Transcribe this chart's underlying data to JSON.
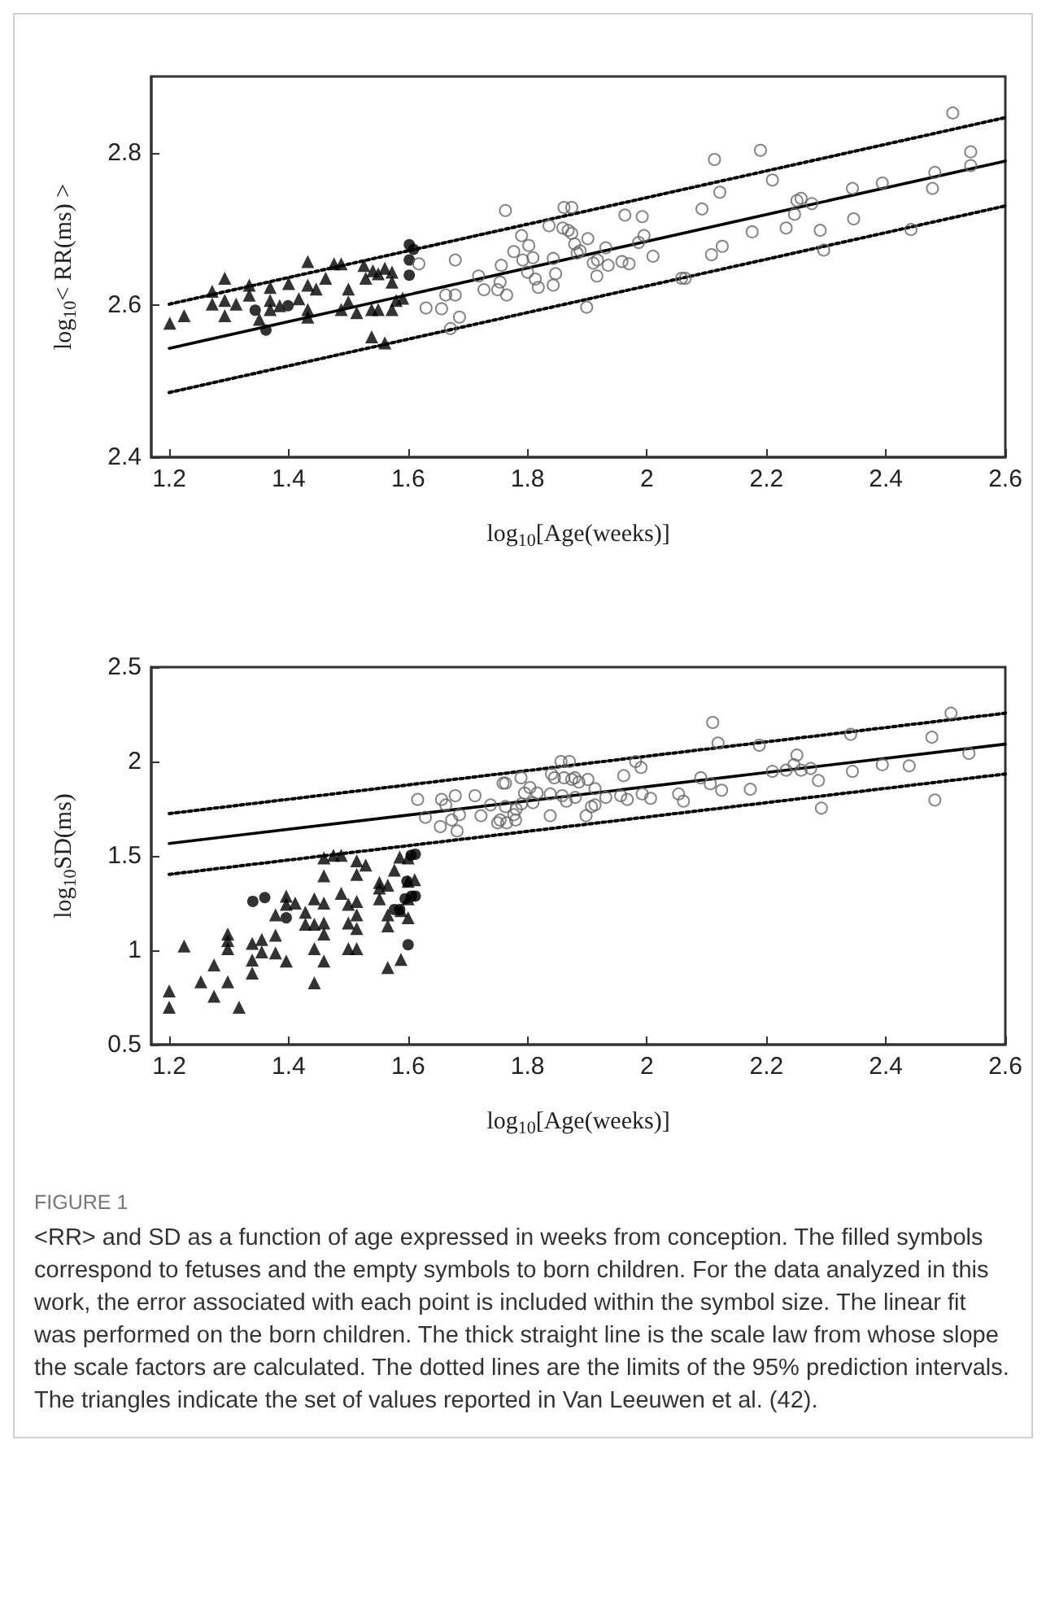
{
  "chart_data": [
    {
      "type": "scatter",
      "xlabel": "log$_{10}$[Age(weeks)]",
      "ylabel": "log$_{10}$< RR(ms) >",
      "xlim": [
        1.17,
        2.6
      ],
      "ylim": [
        2.4,
        2.9
      ],
      "xticks": [
        1.2,
        1.4,
        1.6,
        1.8,
        2,
        2.2,
        2.4,
        2.6
      ],
      "yticks": [
        2.4,
        2.6,
        2.8
      ],
      "series": [
        {
          "type": "scatter",
          "marker": "triangle",
          "color": "#000000",
          "x": [
            1.201,
            1.225,
            1.272,
            1.272,
            1.293,
            1.293,
            1.293,
            1.312,
            1.334,
            1.334,
            1.351,
            1.369,
            1.369,
            1.369,
            1.385,
            1.4,
            1.417,
            1.432,
            1.432,
            1.432,
            1.432,
            1.446,
            1.462,
            1.476,
            1.488,
            1.488,
            1.5,
            1.5,
            1.514,
            1.526,
            1.529,
            1.541,
            1.539,
            1.539,
            1.55,
            1.55,
            1.561,
            1.561,
            1.573,
            1.573,
            1.573,
            1.58,
            1.591
          ],
          "values": [
            2.576,
            2.586,
            2.618,
            2.601,
            2.635,
            2.606,
            2.586,
            2.601,
            2.626,
            2.613,
            2.581,
            2.623,
            2.606,
            2.594,
            2.599,
            2.628,
            2.608,
            2.657,
            2.626,
            2.594,
            2.584,
            2.621,
            2.635,
            2.654,
            2.654,
            2.594,
            2.621,
            2.604,
            2.59,
            2.652,
            2.635,
            2.645,
            2.594,
            2.558,
            2.641,
            2.594,
            2.648,
            2.55,
            2.643,
            2.63,
            2.594,
            2.606,
            2.609
          ]
        },
        {
          "type": "scatter",
          "marker": "circle",
          "color": "#000000",
          "x": [
            1.344,
            1.362,
            1.399,
            1.602,
            1.602,
            1.602,
            1.609
          ],
          "values": [
            2.593,
            2.567,
            2.599,
            2.679,
            2.659,
            2.639,
            2.673
          ]
        },
        {
          "type": "scatter",
          "marker": "circle",
          "color": "#666666",
          "x": [
            1.618,
            1.63,
            1.656,
            1.663,
            1.671,
            1.679,
            1.679,
            1.686,
            1.718,
            1.727,
            1.75,
            1.754,
            1.756,
            1.763,
            1.765,
            1.777,
            1.79,
            1.792,
            1.8,
            1.802,
            1.809,
            1.813,
            1.818,
            1.836,
            1.843,
            1.843,
            1.847,
            1.859,
            1.861,
            1.868,
            1.874,
            1.874,
            1.879,
            1.883,
            1.888,
            1.901,
            1.899,
            1.91,
            1.916,
            1.917,
            1.931,
            1.935,
            1.958,
            1.963,
            1.97,
            1.986,
            1.992,
            1.995,
            2.01,
            2.058,
            2.064,
            2.092,
            2.108,
            2.113,
            2.122,
            2.126,
            2.176,
            2.19,
            2.21,
            2.233,
            2.247,
            2.251,
            2.258,
            2.276,
            2.29,
            2.296,
            2.344,
            2.346,
            2.394,
            2.442,
            2.478,
            2.482,
            2.512,
            2.542,
            2.542
          ],
          "values": [
            2.654,
            2.596,
            2.595,
            2.613,
            2.569,
            2.659,
            2.613,
            2.584,
            2.638,
            2.62,
            2.62,
            2.63,
            2.652,
            2.724,
            2.613,
            2.67,
            2.691,
            2.659,
            2.643,
            2.678,
            2.662,
            2.634,
            2.623,
            2.704,
            2.661,
            2.626,
            2.641,
            2.701,
            2.728,
            2.698,
            2.728,
            2.694,
            2.68,
            2.668,
            2.671,
            2.687,
            2.597,
            2.655,
            2.638,
            2.659,
            2.675,
            2.652,
            2.657,
            2.718,
            2.654,
            2.682,
            2.716,
            2.691,
            2.664,
            2.635,
            2.635,
            2.726,
            2.666,
            2.791,
            2.748,
            2.677,
            2.696,
            2.803,
            2.764,
            2.701,
            2.719,
            2.737,
            2.74,
            2.733,
            2.698,
            2.672,
            2.753,
            2.713,
            2.76,
            2.699,
            2.753,
            2.774,
            2.852,
            2.801,
            2.783
          ]
        },
        {
          "type": "line",
          "marker": "none",
          "line_style": "solid",
          "color": "#000000",
          "x": [
            1.2,
            2.6
          ],
          "values": [
            2.543,
            2.789
          ]
        },
        {
          "type": "line",
          "marker": "none",
          "line_style": "dotted",
          "color": "#000000",
          "x": [
            1.2,
            2.6
          ],
          "values": [
            2.601,
            2.846
          ]
        },
        {
          "type": "line",
          "marker": "none",
          "line_style": "dotted",
          "color": "#000000",
          "x": [
            1.2,
            2.6
          ],
          "values": [
            2.485,
            2.73
          ]
        }
      ]
    },
    {
      "type": "scatter",
      "xlabel": "log$_{10}$[Age(weeks)]",
      "ylabel": "log$_{10}$SD(ms)",
      "xlim": [
        1.17,
        2.6
      ],
      "ylim": [
        0.5,
        2.5
      ],
      "xticks": [
        1.2,
        1.4,
        1.6,
        1.8,
        2,
        2.2,
        2.4,
        2.6
      ],
      "yticks": [
        0.5,
        1,
        1.5,
        2,
        2.5
      ],
      "annotations": [
        "FIGURE 1",
        "<RR> and SD as a function of age expressed in weeks from conception. The filled symbols correspond to fetuses and the empty symbols to born children. For the data analyzed in this work, the error associated with each point is included within the symbol size. The linear fit was performed on the born children. The thick straight line is the scale law from whose slope the scale factors are calculated. The dotted lines are the limits of the 95% prediction intervals. The triangles indicate the set of values reported in Van Leeuwen et al. (42)."
      ],
      "series": [
        {
          "type": "scatter",
          "marker": "triangle",
          "color": "#000000",
          "x": [
            1.2,
            1.2,
            1.225,
            1.253,
            1.275,
            1.275,
            1.298,
            1.298,
            1.298,
            1.298,
            1.317,
            1.339,
            1.339,
            1.339,
            1.355,
            1.355,
            1.378,
            1.378,
            1.378,
            1.396,
            1.396,
            1.396,
            1.411,
            1.428,
            1.428,
            1.443,
            1.443,
            1.443,
            1.443,
            1.459,
            1.459,
            1.459,
            1.459,
            1.459,
            1.459,
            1.475,
            1.488,
            1.488,
            1.5,
            1.5,
            1.5,
            1.514,
            1.514,
            1.514,
            1.514,
            1.514,
            1.514,
            1.529,
            1.552,
            1.552,
            1.552,
            1.566,
            1.566,
            1.566,
            1.566,
            1.577,
            1.588,
            1.588,
            1.586,
            1.6,
            1.6,
            1.6,
            1.6,
            1.611
          ],
          "values": [
            0.784,
            0.698,
            1.023,
            0.833,
            0.922,
            0.756,
            1.086,
            1.052,
            1.009,
            0.833,
            0.698,
            1.037,
            0.948,
            0.879,
            1.057,
            0.991,
            1.08,
            0.986,
            1.187,
            0.943,
            1.244,
            1.287,
            1.25,
            1.201,
            1.138,
            1.273,
            1.138,
            1.009,
            0.828,
            0.943,
            1.086,
            1.144,
            1.25,
            1.394,
            1.489,
            1.503,
            1.503,
            1.302,
            1.244,
            1.144,
            1.009,
            1.474,
            1.402,
            1.259,
            1.187,
            1.115,
            1.009,
            1.451,
            1.359,
            1.33,
            1.273,
            1.345,
            1.187,
            1.129,
            0.908,
            1.425,
            1.21,
            0.951,
            1.494,
            1.489,
            1.365,
            1.273,
            1.172,
            1.374
          ]
        },
        {
          "type": "scatter",
          "marker": "circle",
          "color": "#000000",
          "x": [
            1.34,
            1.36,
            1.396,
            1.577,
            1.586,
            1.595,
            1.598,
            1.6,
            1.605,
            1.612,
            1.606,
            1.612
          ],
          "values": [
            1.259,
            1.279,
            1.172,
            1.216,
            1.216,
            1.273,
            1.365,
            1.029,
            1.503,
            1.509,
            1.287,
            1.287
          ]
        },
        {
          "type": "scatter",
          "marker": "circle",
          "color": "#666666",
          "x": [
            1.616,
            1.629,
            1.654,
            1.656,
            1.663,
            1.673,
            1.679,
            1.682,
            1.686,
            1.712,
            1.722,
            1.738,
            1.75,
            1.754,
            1.759,
            1.763,
            1.763,
            1.765,
            1.777,
            1.78,
            1.781,
            1.789,
            1.79,
            1.795,
            1.804,
            1.809,
            1.816,
            1.838,
            1.838,
            1.84,
            1.845,
            1.856,
            1.858,
            1.861,
            1.865,
            1.87,
            1.874,
            1.879,
            1.88,
            1.886,
            1.898,
            1.901,
            1.907,
            1.913,
            1.913,
            1.931,
            1.956,
            1.961,
            1.967,
            1.981,
            1.99,
            1.992,
            2.006,
            2.053,
            2.061,
            2.09,
            2.106,
            2.11,
            2.119,
            2.125,
            2.173,
            2.188,
            2.21,
            2.233,
            2.246,
            2.251,
            2.258,
            2.274,
            2.287,
            2.292,
            2.341,
            2.344,
            2.394,
            2.439,
            2.477,
            2.482,
            2.509,
            2.539
          ],
          "values": [
            1.799,
            1.704,
            1.655,
            1.799,
            1.77,
            1.69,
            1.819,
            1.632,
            1.718,
            1.819,
            1.713,
            1.77,
            1.675,
            1.69,
            1.885,
            1.885,
            1.761,
            1.675,
            1.718,
            1.69,
            1.747,
            1.914,
            1.776,
            1.833,
            1.862,
            1.782,
            1.833,
            1.828,
            1.713,
            1.934,
            1.914,
            2.0,
            1.819,
            1.914,
            1.79,
            2.0,
            1.905,
            1.914,
            1.81,
            1.891,
            1.713,
            1.905,
            1.761,
            1.856,
            1.77,
            1.81,
            1.819,
            1.925,
            1.799,
            2.0,
            1.968,
            1.828,
            1.805,
            1.828,
            1.79,
            1.914,
            1.882,
            2.207,
            2.098,
            1.848,
            1.853,
            2.086,
            1.948,
            1.954,
            1.983,
            2.034,
            1.954,
            1.963,
            1.899,
            1.753,
            2.144,
            1.948,
            1.983,
            1.977,
            2.129,
            1.796,
            2.256,
            2.043
          ]
        },
        {
          "type": "line",
          "marker": "none",
          "line_style": "solid",
          "color": "#000000",
          "x": [
            1.2,
            2.6
          ],
          "values": [
            1.566,
            2.092
          ]
        },
        {
          "type": "line",
          "marker": "none",
          "line_style": "dotted",
          "color": "#000000",
          "x": [
            1.2,
            2.6
          ],
          "values": [
            1.724,
            2.256
          ]
        },
        {
          "type": "line",
          "marker": "none",
          "line_style": "dotted",
          "color": "#000000",
          "x": [
            1.2,
            2.6
          ],
          "values": [
            1.402,
            1.934
          ]
        }
      ]
    }
  ]
}
